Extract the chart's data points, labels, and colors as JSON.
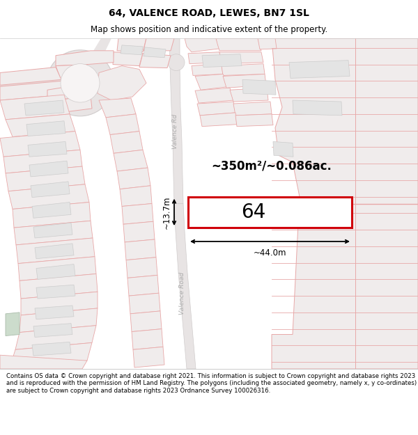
{
  "title": "64, VALENCE ROAD, LEWES, BN7 1SL",
  "subtitle": "Map shows position and indicative extent of the property.",
  "footer": "Contains OS data © Crown copyright and database right 2021. This information is subject to Crown copyright and database rights 2023 and is reproduced with the permission of HM Land Registry. The polygons (including the associated geometry, namely x, y co-ordinates) are subject to Crown copyright and database rights 2023 Ordnance Survey 100026316.",
  "area_label": "~350m²/~0.086ac.",
  "width_label": "~44.0m",
  "height_label": "~13.7m",
  "plot_number": "64",
  "bg_color": "#f7f4f4",
  "road_fill": "#e8e4e4",
  "plot_fill": "#ffffff",
  "plot_border": "#d0000a",
  "poly_fill": "#f0ecec",
  "poly_stroke": "#e8a8a8",
  "gray_fill": "#e4e4e4",
  "gray_stroke": "#cccccc",
  "green_fill": "#ccdccc",
  "green_stroke": "#aabcaa",
  "title_fontsize": 10,
  "subtitle_fontsize": 8.5,
  "footer_fontsize": 6.2,
  "road_label_color": "#aaaaaa"
}
